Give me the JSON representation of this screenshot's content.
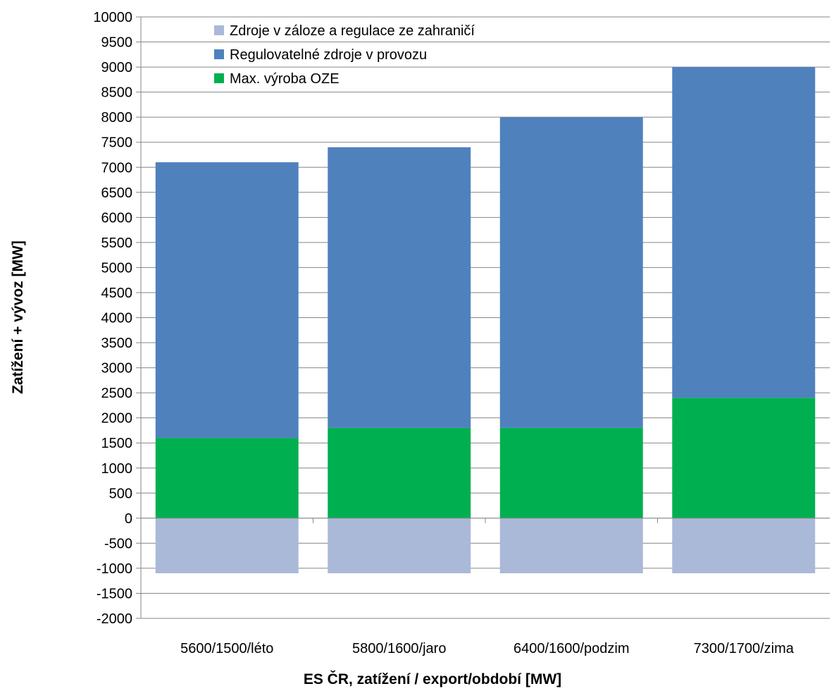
{
  "chart_data": {
    "type": "bar",
    "stacked": true,
    "categories": [
      "5600/1500/léto",
      "5800/1600/jaro",
      "6400/1600/podzim",
      "7300/1700/zima"
    ],
    "series": [
      {
        "name": "Zdroje v záloze a regulace ze zahraničí",
        "values": [
          -1100,
          -1100,
          -1100,
          -1100
        ],
        "color": "#aab9d8"
      },
      {
        "name": "Regulovatelné zdroje v provozu",
        "values": [
          5500,
          5600,
          6200,
          6600
        ],
        "color": "#4f81bd"
      },
      {
        "name": "Max. výroba OZE",
        "values": [
          1600,
          1800,
          1800,
          2400
        ],
        "color": "#00b050"
      }
    ],
    "legend_order": [
      0,
      1,
      2
    ],
    "title": "",
    "xlabel": "ES ČR, zatížení / export/období  [MW]",
    "ylabel": "Zatížení + vývoz [MW]",
    "ylim": [
      -2000,
      10000
    ],
    "ytick_step": 500,
    "grid": true,
    "legend_position": "top-left"
  }
}
